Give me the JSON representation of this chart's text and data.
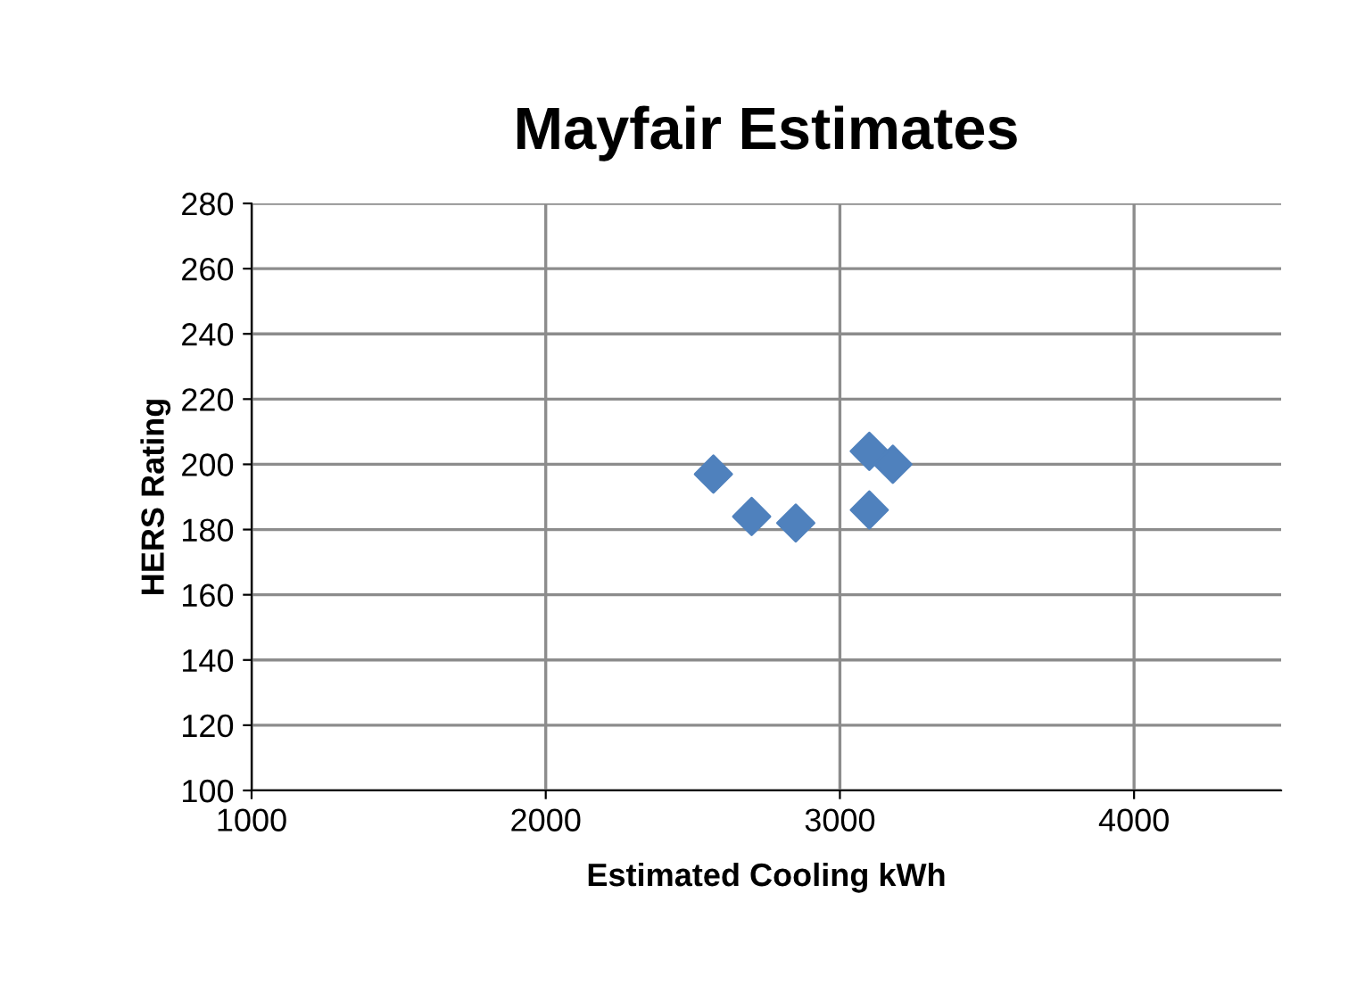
{
  "chart_data": {
    "type": "scatter",
    "title": "Mayfair Estimates",
    "xlabel": "Estimated Cooling kWh",
    "ylabel": "HERS Rating",
    "series": [
      {
        "color": "#4f81bd",
        "x": [
          2570,
          2700,
          2850,
          3100,
          3180,
          3100
        ],
        "values": [
          197,
          184,
          182,
          204,
          200,
          186
        ]
      }
    ],
    "xlim": [
      1000,
      4500
    ],
    "xticks": [
      1000,
      2000,
      3000,
      4000
    ],
    "ylim": [
      100,
      280
    ],
    "yticks": [
      100,
      120,
      140,
      160,
      180,
      200,
      220,
      240,
      260,
      280
    ],
    "grid": true,
    "marker": "diamond",
    "legend": false
  }
}
